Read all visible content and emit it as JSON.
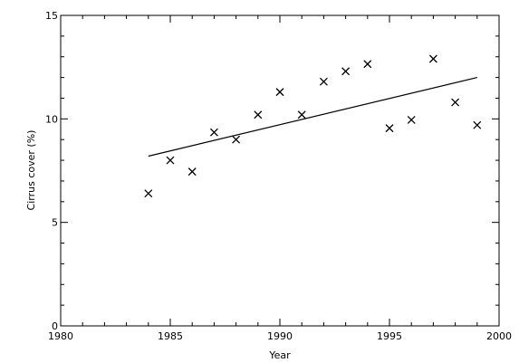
{
  "chart_data": {
    "type": "scatter",
    "title": "",
    "xlabel": "Year",
    "ylabel": "Cirrus cover (%)",
    "xlim": [
      1980,
      2000
    ],
    "ylim": [
      0,
      15
    ],
    "x_ticks": [
      "1980",
      "1985",
      "1990",
      "1995",
      "2000"
    ],
    "y_ticks": [
      "0",
      "5",
      "10",
      "15"
    ],
    "grid": false,
    "marker": "x",
    "points": {
      "x": [
        1984,
        1985,
        1986,
        1987,
        1988,
        1989,
        1990,
        1991,
        1992,
        1993,
        1994,
        1995,
        1996,
        1997,
        1998,
        1999
      ],
      "y": [
        6.4,
        8.0,
        7.45,
        9.35,
        9.0,
        10.2,
        11.3,
        10.2,
        11.8,
        12.3,
        12.65,
        9.55,
        9.95,
        12.9,
        10.8,
        9.7
      ]
    },
    "trend_line": {
      "x": [
        1984,
        1999
      ],
      "y": [
        8.2,
        12.0
      ]
    },
    "colors": {
      "marks": "#000000",
      "background": "#ffffff"
    }
  }
}
